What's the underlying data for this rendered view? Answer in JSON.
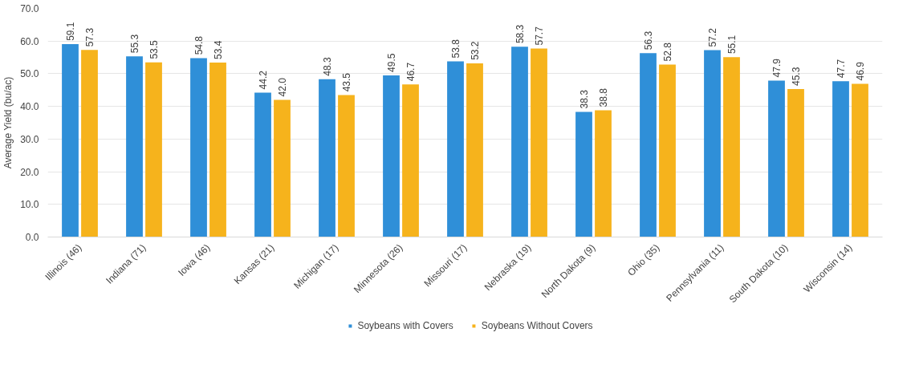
{
  "chart_data": {
    "type": "bar",
    "ylabel": "Average Yield (bu/ac)",
    "categories": [
      "Illinois (46)",
      "Indiana (71)",
      "Iowa (46)",
      "Kansas (21)",
      "Michigan (17)",
      "Minnesota (26)",
      "Missouri (17)",
      "Nebraska (19)",
      "North Dakota (9)",
      "Ohio (35)",
      "Pennsylvania (11)",
      "South Dakota (10)",
      "Wisconsin (14)"
    ],
    "series": [
      {
        "name": "Soybeans with Covers",
        "color": "#2f8fd8",
        "values": [
          59.1,
          55.3,
          54.8,
          44.2,
          48.3,
          49.5,
          53.8,
          58.3,
          38.3,
          56.3,
          57.2,
          47.9,
          47.7
        ],
        "value_labels": [
          "59.1",
          "55.3",
          "54.8",
          "44.2",
          "48.3",
          "49.5",
          "53.8",
          "58.3",
          "38.3",
          "56.3",
          "57.2",
          "47.9",
          "47.7"
        ]
      },
      {
        "name": "Soybeans Without Covers",
        "color": "#f6b31c",
        "values": [
          57.3,
          53.5,
          53.4,
          42.0,
          43.5,
          46.7,
          53.2,
          57.7,
          38.8,
          52.8,
          55.1,
          45.3,
          46.9
        ],
        "value_labels": [
          "57.3",
          "53.5",
          "53.4",
          "42.0",
          "43.5",
          "46.7",
          "53.2",
          "57.7",
          "38.8",
          "52.8",
          "55.1",
          "45.3",
          "46.9"
        ]
      }
    ],
    "ylim": [
      0,
      70
    ],
    "yticks": [
      {
        "value": 0,
        "label": "0.0"
      },
      {
        "value": 10,
        "label": "10.0"
      },
      {
        "value": 20,
        "label": "20.0"
      },
      {
        "value": 30,
        "label": "30.0"
      },
      {
        "value": 40,
        "label": "40.0"
      },
      {
        "value": 50,
        "label": "50.0"
      },
      {
        "value": 60,
        "label": "60.0"
      },
      {
        "value": 70,
        "label": "70.0"
      }
    ],
    "grid": "y",
    "legend": "bottom"
  }
}
